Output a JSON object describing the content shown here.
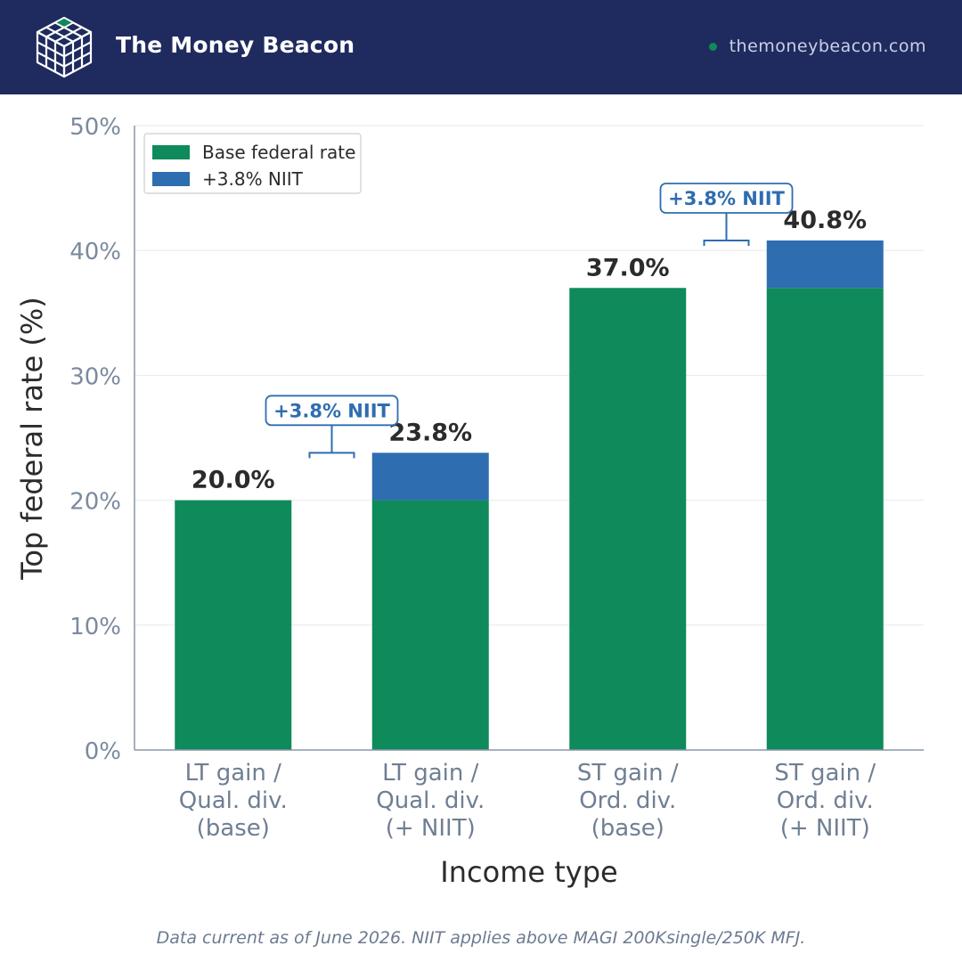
{
  "header": {
    "brand": "The Money Beacon",
    "site": "themoneybeacon.com",
    "logo_icon": "cube-grid-icon"
  },
  "colors": {
    "header_bg": "#1f2b5e",
    "base": "#0f8a5a",
    "niit": "#2e6db0",
    "dot": "#0f8a5a"
  },
  "chart_data": {
    "type": "bar",
    "stacked": true,
    "categories": [
      [
        "LT gain /",
        "Qual. div.",
        "(base)"
      ],
      [
        "LT gain /",
        "Qual. div.",
        "(+ NIIT)"
      ],
      [
        "ST gain /",
        "Ord. div.",
        "(base)"
      ],
      [
        "ST gain /",
        "Ord. div.",
        "(+ NIIT)"
      ]
    ],
    "series": [
      {
        "name": "Base federal rate",
        "values": [
          20.0,
          20.0,
          37.0,
          37.0
        ],
        "color": "#0f8a5a"
      },
      {
        "name": "+3.8% NIIT",
        "values": [
          0,
          3.8,
          0,
          3.8
        ],
        "color": "#2e6db0"
      }
    ],
    "totals": [
      "20.0%",
      "23.8%",
      "37.0%",
      "40.8%"
    ],
    "annotations": [
      {
        "text": "+3.8% NIIT",
        "between": [
          0,
          1
        ]
      },
      {
        "text": "+3.8% NIIT",
        "between": [
          2,
          3
        ]
      }
    ],
    "xlabel": "Income type",
    "ylabel": "Top federal rate (%)",
    "ylim": [
      0,
      50
    ],
    "yticks": [
      0,
      10,
      20,
      30,
      40,
      50
    ],
    "ytick_labels": [
      "0%",
      "10%",
      "20%",
      "30%",
      "40%",
      "50%"
    ],
    "grid": true,
    "legend_position": "top-left"
  },
  "footer": {
    "note": "Data current as of June 2026. NIIT applies above MAGI 200Ksingle/250K MFJ."
  }
}
